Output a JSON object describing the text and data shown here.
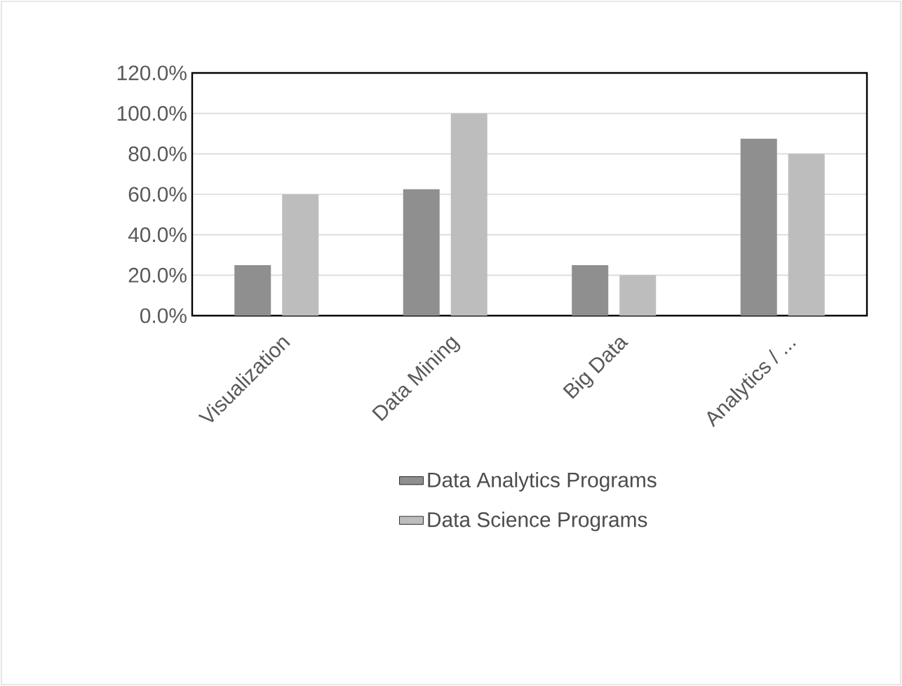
{
  "chart_data": {
    "type": "bar",
    "categories": [
      "Visualization",
      "Data Mining",
      "Big Data",
      "Analytics / ..."
    ],
    "series": [
      {
        "name": "Data Analytics Programs",
        "color": "#8f8f8f",
        "values": [
          25,
          62.5,
          25,
          87.5
        ]
      },
      {
        "name": "Data Science Programs",
        "color": "#bdbdbd",
        "values": [
          60,
          100,
          20,
          80
        ]
      }
    ],
    "ylim": [
      0,
      120
    ],
    "yticks": [
      {
        "value": 0,
        "label": "0.0%"
      },
      {
        "value": 20,
        "label": "20.0%"
      },
      {
        "value": 40,
        "label": "40.0%"
      },
      {
        "value": 60,
        "label": "60.0%"
      },
      {
        "value": 80,
        "label": "80.0%"
      },
      {
        "value": 100,
        "label": "100.0%"
      },
      {
        "value": 120,
        "label": "120.0%"
      }
    ],
    "grid": "y",
    "legend": "bottom"
  }
}
